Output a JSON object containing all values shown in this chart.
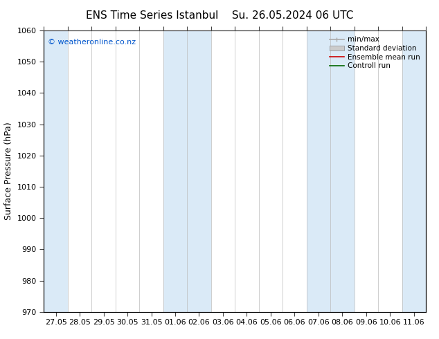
{
  "title_left": "ENS Time Series Istanbul",
  "title_right": "Su. 26.05.2024 06 UTC",
  "ylabel": "Surface Pressure (hPa)",
  "ylim": [
    970,
    1060
  ],
  "yticks": [
    970,
    980,
    990,
    1000,
    1010,
    1020,
    1030,
    1040,
    1050,
    1060
  ],
  "x_labels": [
    "27.05",
    "28.05",
    "29.05",
    "30.05",
    "31.05",
    "01.06",
    "02.06",
    "03.06",
    "04.06",
    "05.06",
    "06.06",
    "07.06",
    "08.06",
    "09.06",
    "10.06",
    "11.06"
  ],
  "n_cols": 16,
  "blue_band_color": "#daeaf7",
  "blue_bands": [
    0,
    5,
    6,
    11,
    12,
    15
  ],
  "watermark": "© weatheronline.co.nz",
  "legend_items": [
    {
      "label": "min/max",
      "color": "#aaaaaa",
      "lw": 1.2
    },
    {
      "label": "Standard deviation",
      "color": "#cccccc",
      "lw": 5
    },
    {
      "label": "Ensemble mean run",
      "color": "#cc0000",
      "lw": 1.2
    },
    {
      "label": "Controll run",
      "color": "#006600",
      "lw": 1.2
    }
  ],
  "background_color": "#ffffff",
  "plot_bg_color": "#ffffff",
  "fig_width": 6.34,
  "fig_height": 4.9,
  "dpi": 100,
  "title_fontsize": 11,
  "ylabel_fontsize": 9,
  "tick_fontsize": 8,
  "legend_fontsize": 7.5,
  "watermark_color": "#0055cc",
  "watermark_fontsize": 8,
  "spine_color": "#444444",
  "tick_color": "#444444"
}
